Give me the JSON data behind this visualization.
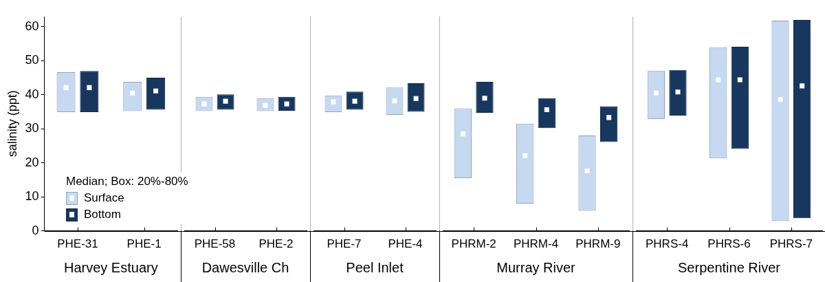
{
  "chart_data": [
    {
      "type": "bar",
      "xlabel": "Harvey Estuary",
      "ylabel": "salinity (ppt)",
      "legend_title": "Median; Box: 20%-80%",
      "legend": "bottom left",
      "grid": false,
      "marker": "square",
      "categories": [
        "PHE-31",
        "PHE-1"
      ],
      "ylim": [
        0,
        63
      ],
      "yticks": [
        0,
        10,
        20,
        30,
        40,
        50,
        60
      ],
      "series": [
        {
          "name": "Surface",
          "type": "bar",
          "color": "#c6d9f1",
          "base": [
            34.9,
            35.2
          ],
          "values": [
            11.7,
            8.6
          ]
        },
        {
          "name": "Bottom",
          "type": "bar",
          "color": "#17375e",
          "base": [
            34.9,
            35.6
          ],
          "values": [
            12.1,
            9.4
          ]
        },
        {
          "type": "scatter",
          "color": "#ffffff",
          "x": [
            "PHE-31",
            "PHE-1"
          ],
          "values": [
            42.1,
            40.5
          ]
        },
        {
          "type": "scatter",
          "color": "#ffffff",
          "x": [
            "PHE-31",
            "PHE-1"
          ],
          "values": [
            42.1,
            41.1
          ]
        }
      ]
    },
    {
      "type": "bar",
      "xlabel": "Dawesville Ch",
      "tick_labels": "x",
      "marker": "square",
      "categories": [
        "PHE-58",
        "PHE-2"
      ],
      "ylim": [
        0,
        63
      ],
      "series": [
        {
          "type": "bar",
          "color": "#c6d9f1",
          "base": [
            35.2,
            35.2
          ],
          "values": [
            4.2,
            3.8
          ]
        },
        {
          "type": "bar",
          "color": "#17375e",
          "base": [
            35.6,
            35.3
          ],
          "values": [
            4.5,
            4.1
          ]
        },
        {
          "type": "scatter",
          "color": "#ffffff",
          "x": [
            "PHE-58",
            "PHE-2"
          ],
          "values": [
            37.3,
            36.9
          ]
        },
        {
          "type": "scatter",
          "color": "#ffffff",
          "x": [
            "PHE-58",
            "PHE-2"
          ],
          "values": [
            38.1,
            37.3
          ]
        }
      ]
    },
    {
      "type": "bar",
      "xlabel": "Peel Inlet",
      "tick_labels": "x",
      "marker": "square",
      "categories": [
        "PHE-7",
        "PHE-4"
      ],
      "ylim": [
        0,
        63
      ],
      "series": [
        {
          "type": "bar",
          "color": "#c6d9f1",
          "base": [
            34.9,
            34.1
          ],
          "values": [
            4.9,
            8.0
          ]
        },
        {
          "type": "bar",
          "color": "#17375e",
          "base": [
            35.6,
            35.0
          ],
          "values": [
            5.3,
            8.4
          ]
        },
        {
          "type": "scatter",
          "color": "#ffffff",
          "x": [
            "PHE-7",
            "PHE-4"
          ],
          "values": [
            37.9,
            38.2
          ]
        },
        {
          "type": "scatter",
          "color": "#ffffff",
          "x": [
            "PHE-7",
            "PHE-4"
          ],
          "values": [
            38.1,
            38.9
          ]
        }
      ]
    },
    {
      "type": "bar",
      "xlabel": "Murray River",
      "tick_labels": "x",
      "marker": "square",
      "categories": [
        "PHRM-2",
        "PHRM-4",
        "PHRM-9"
      ],
      "ylim": [
        0,
        63
      ],
      "series": [
        {
          "type": "bar",
          "color": "#c6d9f1",
          "base": [
            15.5,
            8.0,
            5.9
          ],
          "values": [
            20.5,
            23.5,
            22.1
          ]
        },
        {
          "type": "bar",
          "color": "#17375e",
          "base": [
            34.7,
            30.2,
            26.1
          ],
          "values": [
            9.1,
            8.8,
            10.5
          ]
        },
        {
          "type": "scatter",
          "color": "#ffffff",
          "x": [
            "PHRM-2",
            "PHRM-4",
            "PHRM-9"
          ],
          "values": [
            28.5,
            22.1,
            17.6
          ]
        },
        {
          "type": "scatter",
          "color": "#ffffff",
          "x": [
            "PHRM-2",
            "PHRM-4",
            "PHRM-9"
          ],
          "values": [
            39.0,
            35.6,
            33.3
          ]
        }
      ]
    },
    {
      "type": "bar",
      "xlabel": "Serpentine River",
      "tick_labels": "x",
      "marker": "square",
      "categories": [
        "PHRS-4",
        "PHRS-6",
        "PHRS-7"
      ],
      "ylim": [
        0,
        63
      ],
      "series": [
        {
          "type": "bar",
          "color": "#c6d9f1",
          "base": [
            32.9,
            21.3,
            2.9
          ],
          "values": [
            14.2,
            32.7,
            58.9
          ]
        },
        {
          "type": "bar",
          "color": "#17375e",
          "base": [
            33.9,
            24.1,
            3.7
          ],
          "values": [
            13.4,
            30.0,
            58.3
          ]
        },
        {
          "type": "scatter",
          "color": "#ffffff",
          "x": [
            "PHRS-4",
            "PHRS-6",
            "PHRS-7"
          ],
          "values": [
            40.5,
            44.4,
            38.6
          ]
        },
        {
          "type": "scatter",
          "color": "#ffffff",
          "x": [
            "PHRS-4",
            "PHRS-6",
            "PHRS-7"
          ],
          "values": [
            40.8,
            44.4,
            42.6
          ]
        }
      ]
    }
  ]
}
